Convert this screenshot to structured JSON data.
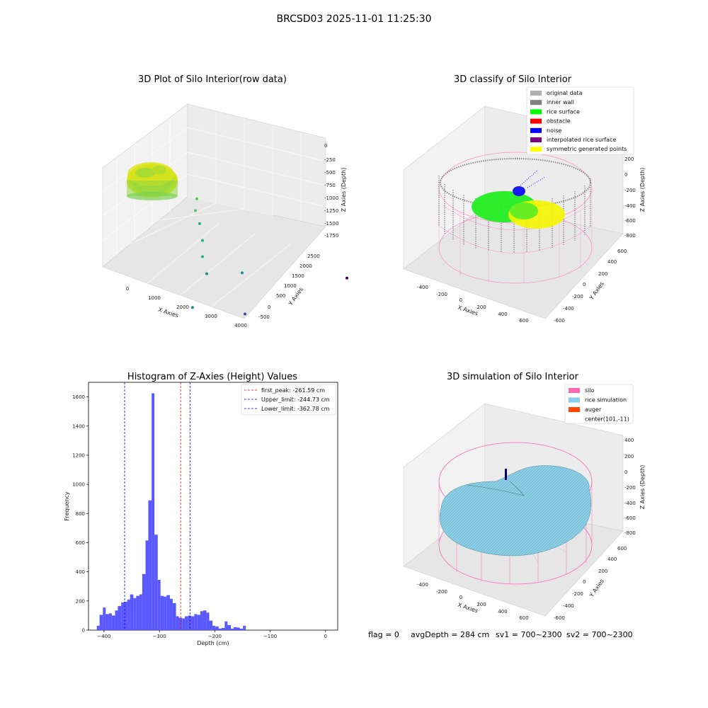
{
  "figure": {
    "suptitle": "BRCSD03 2025-11-01 11:25:30",
    "status_line": {
      "flag": "flag = 0",
      "avg_depth": "avgDepth = 284 cm",
      "sv1": "sv1 = 700~2300",
      "sv2": "sv2 = 700~2300"
    }
  },
  "chart_data": [
    {
      "type": "scatter",
      "projection": "3d",
      "title": "3D Plot of Silo Interior(row data)",
      "xlabel": "X Axies",
      "ylabel": "Y Axies",
      "zlabel": "Z Axies (Depth)",
      "x_ticks": [
        "0",
        "1000",
        "2000",
        "3000",
        "4000"
      ],
      "y_ticks": [
        "-500",
        "0",
        "500",
        "1000",
        "1500",
        "2000",
        "2500"
      ],
      "z_ticks": [
        "0",
        "-250",
        "-500",
        "-750",
        "-1000",
        "-1250",
        "-1500",
        "-1750"
      ],
      "colormap": "viridis",
      "outlier_points": [
        {
          "x": 400,
          "y": 1400,
          "z": -700
        },
        {
          "x": 500,
          "y": 1300,
          "z": -800
        },
        {
          "x": 800,
          "y": 1200,
          "z": -900
        },
        {
          "x": 1200,
          "y": 1000,
          "z": -1000
        },
        {
          "x": 1500,
          "y": 800,
          "z": -1100
        },
        {
          "x": 1800,
          "y": 700,
          "z": -1250
        },
        {
          "x": 2300,
          "y": 1200,
          "z": -1400
        },
        {
          "x": 1900,
          "y": 300,
          "z": -1500
        },
        {
          "x": 3000,
          "y": 800,
          "z": -1700
        },
        {
          "x": 3900,
          "y": 2600,
          "z": -1900
        }
      ]
    },
    {
      "type": "scatter",
      "projection": "3d",
      "title": "3D classify of Silo Interior",
      "xlabel": "X Axies",
      "ylabel": "Y Axies",
      "zlabel": "Z Axies (Depth)",
      "x_ticks": [
        "-400",
        "-200",
        "0",
        "200",
        "400",
        "600"
      ],
      "y_ticks": [
        "-600",
        "-400",
        "-200",
        "0",
        "200",
        "400",
        "600"
      ],
      "z_ticks": [
        "200",
        "0",
        "-200",
        "-400",
        "-600",
        "-800"
      ],
      "legend_position": "top-right",
      "legend": [
        {
          "label": "original data",
          "color": "#b0b0b0"
        },
        {
          "label": "inner wall",
          "color": "#808080"
        },
        {
          "label": "rice surface",
          "color": "#00ff00"
        },
        {
          "label": "obstacle",
          "color": "#ff0000"
        },
        {
          "label": "noise",
          "color": "#0000ff"
        },
        {
          "label": "interpolated rice surface",
          "color": "#800080"
        },
        {
          "label": "symmetric generated points",
          "color": "#ffff00"
        }
      ]
    },
    {
      "type": "bar",
      "subtype": "histogram",
      "title": "Histogram of Z-Axies (Height) Values",
      "xlabel": "Depth (cm)",
      "ylabel": "Frequency",
      "xlim": [
        -428,
        22
      ],
      "ylim": [
        0,
        1700
      ],
      "x_ticks": [
        -400,
        -300,
        -200,
        -100,
        0
      ],
      "y_ticks": [
        0,
        200,
        400,
        600,
        800,
        1000,
        1200,
        1400,
        1600
      ],
      "bar_color": "#5050ff",
      "bins": [
        {
          "x0": -413,
          "x1": -408,
          "value": 30
        },
        {
          "x0": -408,
          "x1": -402,
          "value": 105
        },
        {
          "x0": -402,
          "x1": -397,
          "value": 155
        },
        {
          "x0": -397,
          "x1": -391,
          "value": 110
        },
        {
          "x0": -391,
          "x1": -386,
          "value": 115
        },
        {
          "x0": -386,
          "x1": -380,
          "value": 100
        },
        {
          "x0": -380,
          "x1": -375,
          "value": 135
        },
        {
          "x0": -375,
          "x1": -369,
          "value": 165
        },
        {
          "x0": -369,
          "x1": -364,
          "value": 190
        },
        {
          "x0": -364,
          "x1": -358,
          "value": 195
        },
        {
          "x0": -358,
          "x1": -353,
          "value": 210
        },
        {
          "x0": -353,
          "x1": -347,
          "value": 245
        },
        {
          "x0": -347,
          "x1": -342,
          "value": 220
        },
        {
          "x0": -342,
          "x1": -336,
          "value": 235
        },
        {
          "x0": -336,
          "x1": -331,
          "value": 245
        },
        {
          "x0": -331,
          "x1": -325,
          "value": 385
        },
        {
          "x0": -325,
          "x1": -320,
          "value": 615
        },
        {
          "x0": -320,
          "x1": -314,
          "value": 890
        },
        {
          "x0": -314,
          "x1": -309,
          "value": 1625
        },
        {
          "x0": -309,
          "x1": -303,
          "value": 655
        },
        {
          "x0": -303,
          "x1": -298,
          "value": 345
        },
        {
          "x0": -298,
          "x1": -292,
          "value": 235
        },
        {
          "x0": -292,
          "x1": -287,
          "value": 230
        },
        {
          "x0": -287,
          "x1": -281,
          "value": 240
        },
        {
          "x0": -281,
          "x1": -276,
          "value": 215
        },
        {
          "x0": -276,
          "x1": -270,
          "value": 185
        },
        {
          "x0": -270,
          "x1": -265,
          "value": 95
        },
        {
          "x0": -265,
          "x1": -259,
          "value": 85
        },
        {
          "x0": -259,
          "x1": -254,
          "value": 80
        },
        {
          "x0": -254,
          "x1": -248,
          "value": 95
        },
        {
          "x0": -248,
          "x1": -243,
          "value": 100
        },
        {
          "x0": -243,
          "x1": -237,
          "value": 95
        },
        {
          "x0": -237,
          "x1": -232,
          "value": 110
        },
        {
          "x0": -232,
          "x1": -226,
          "value": 105
        },
        {
          "x0": -226,
          "x1": -221,
          "value": 130
        },
        {
          "x0": -221,
          "x1": -215,
          "value": 135
        },
        {
          "x0": -215,
          "x1": -210,
          "value": 120
        },
        {
          "x0": -210,
          "x1": -204,
          "value": 65
        },
        {
          "x0": -204,
          "x1": -199,
          "value": 30
        },
        {
          "x0": -199,
          "x1": -193,
          "value": 25
        },
        {
          "x0": -193,
          "x1": -188,
          "value": 10
        },
        {
          "x0": -188,
          "x1": -182,
          "value": 15
        },
        {
          "x0": -182,
          "x1": -177,
          "value": 60
        },
        {
          "x0": -177,
          "x1": -171,
          "value": 35
        },
        {
          "x0": -171,
          "x1": -166,
          "value": 10
        },
        {
          "x0": -166,
          "x1": -160,
          "value": 20
        },
        {
          "x0": -160,
          "x1": -155,
          "value": 18
        },
        {
          "x0": -155,
          "x1": -149,
          "value": 10
        },
        {
          "x0": -149,
          "x1": -144,
          "value": 30
        }
      ],
      "reference_lines": [
        {
          "label": "first_peak: -261.59 cm",
          "value": -261.59,
          "color": "#ff0000"
        },
        {
          "label": "Upper_limit: -244.73 cm",
          "value": -244.73,
          "color": "#0000ff"
        },
        {
          "label": "Lower_limit: -362.78 cm",
          "value": -362.78,
          "color": "#0000ff"
        }
      ],
      "legend_position": "top-right"
    },
    {
      "type": "area",
      "projection": "3d",
      "title": "3D simulation of Silo Interior",
      "xlabel": "X Axies",
      "ylabel": "Y Axies",
      "zlabel": "Z Axies (Depth)",
      "x_ticks": [
        "-400",
        "-200",
        "0",
        "200",
        "400",
        "600"
      ],
      "y_ticks": [
        "-600",
        "-400",
        "-200",
        "0",
        "200",
        "400",
        "600"
      ],
      "z_ticks": [
        "400",
        "200",
        "0",
        "-200",
        "-400",
        "-600",
        "-800"
      ],
      "legend_position": "top-right",
      "legend": [
        {
          "label": "silo",
          "color": "#ff69b4"
        },
        {
          "label": "rice simulation",
          "color": "#87ceeb"
        },
        {
          "label": "auger",
          "color": "#ff4500"
        },
        {
          "label": "center(101,-11)",
          "color": ""
        }
      ]
    }
  ]
}
